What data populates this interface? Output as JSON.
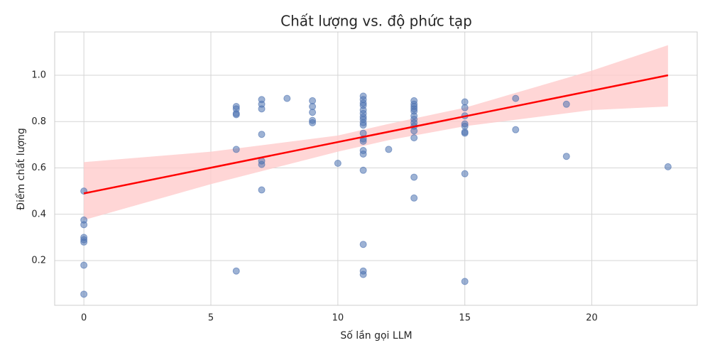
{
  "chart_data": {
    "type": "scatter",
    "title": "Chất lượng vs. độ phức tạp",
    "xlabel": "Số lần gọi LLM",
    "ylabel": "Điểm chất lượng",
    "x": [
      0,
      0,
      0,
      0,
      0,
      0,
      0,
      0,
      6,
      6,
      6,
      6,
      6,
      6,
      7,
      7,
      7,
      7,
      7,
      7,
      7,
      8,
      9,
      9,
      9,
      9,
      9,
      10,
      11,
      11,
      11,
      11,
      11,
      11,
      11,
      11,
      11,
      11,
      11,
      11,
      11,
      11,
      11,
      11,
      11,
      11,
      11,
      12,
      13,
      13,
      13,
      13,
      13,
      13,
      13,
      13,
      13,
      13,
      13,
      13,
      13,
      15,
      15,
      15,
      15,
      15,
      15,
      15,
      15,
      15,
      17,
      17,
      19,
      19,
      23
    ],
    "y": [
      0.5,
      0.375,
      0.355,
      0.3,
      0.29,
      0.28,
      0.18,
      0.055,
      0.865,
      0.855,
      0.835,
      0.83,
      0.68,
      0.155,
      0.895,
      0.875,
      0.855,
      0.745,
      0.63,
      0.615,
      0.505,
      0.9,
      0.89,
      0.865,
      0.84,
      0.805,
      0.795,
      0.62,
      0.91,
      0.895,
      0.88,
      0.87,
      0.85,
      0.835,
      0.82,
      0.81,
      0.795,
      0.785,
      0.75,
      0.725,
      0.715,
      0.675,
      0.66,
      0.59,
      0.27,
      0.155,
      0.14,
      0.68,
      0.89,
      0.875,
      0.865,
      0.855,
      0.845,
      0.825,
      0.81,
      0.795,
      0.78,
      0.76,
      0.73,
      0.56,
      0.47,
      0.885,
      0.86,
      0.825,
      0.79,
      0.78,
      0.755,
      0.75,
      0.575,
      0.11,
      0.9,
      0.765,
      0.875,
      0.65,
      0.605
    ],
    "color": "#4c72b0",
    "fit": {
      "x": [
        0,
        23
      ],
      "y": [
        0.49,
        1.0
      ],
      "color": "#ff0000"
    },
    "ci": {
      "x": [
        0,
        5,
        10,
        12,
        15,
        20,
        23
      ],
      "lower": [
        0.375,
        0.53,
        0.67,
        0.72,
        0.78,
        0.85,
        0.865
      ],
      "upper": [
        0.625,
        0.67,
        0.74,
        0.79,
        0.86,
        1.02,
        1.13
      ],
      "color": "#ffcccc"
    },
    "xlim": [
      -1.15,
      24.15
    ],
    "ylim": [
      0.007,
      1.187
    ],
    "xticks": [
      0,
      5,
      10,
      15,
      20
    ],
    "yticks": [
      0.2,
      0.4,
      0.6,
      0.8,
      {
        "value": 1,
        "label": "1.0"
      }
    ],
    "grid": true
  }
}
